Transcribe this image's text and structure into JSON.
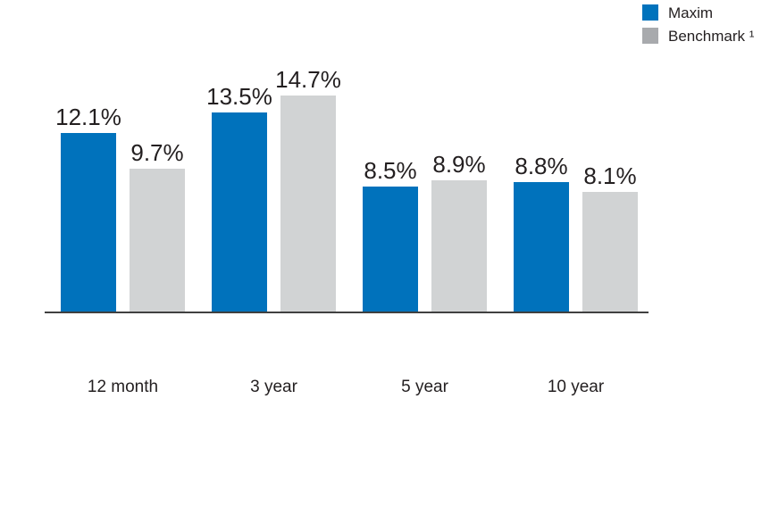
{
  "page": {
    "background_color": "#FFFFFF",
    "text_color": "#231F20"
  },
  "legend": {
    "position": "top-right",
    "items": [
      {
        "id": "maxim",
        "label": "Maxim",
        "swatch_color": "#0072BC"
      },
      {
        "id": "benchmark",
        "label": "Benchmark ¹",
        "swatch_color": "#A8AAAD"
      }
    ]
  },
  "chart_data": {
    "type": "bar",
    "title": "",
    "xlabel": "",
    "ylabel": "",
    "unit": "%",
    "categories": [
      "12 month",
      "3 year",
      "5 year",
      "10 year"
    ],
    "series": [
      {
        "name": "Maxim",
        "color": "#0072BC",
        "values": [
          12.1,
          13.5,
          8.5,
          8.8
        ],
        "labels": [
          "12.1%",
          "13.5%",
          "8.5%",
          "8.8%"
        ]
      },
      {
        "name": "Benchmark ¹",
        "color": "#D1D3D4",
        "values": [
          9.7,
          14.7,
          8.9,
          8.1
        ],
        "labels": [
          "9.7%",
          "14.7%",
          "8.9%",
          "8.1%"
        ]
      }
    ],
    "ylim": [
      0,
      15
    ],
    "grid": false,
    "y_axis_visible": false,
    "legend_position": "top-right",
    "axis_line_color": "#404040",
    "value_label_color": "#231F20"
  }
}
